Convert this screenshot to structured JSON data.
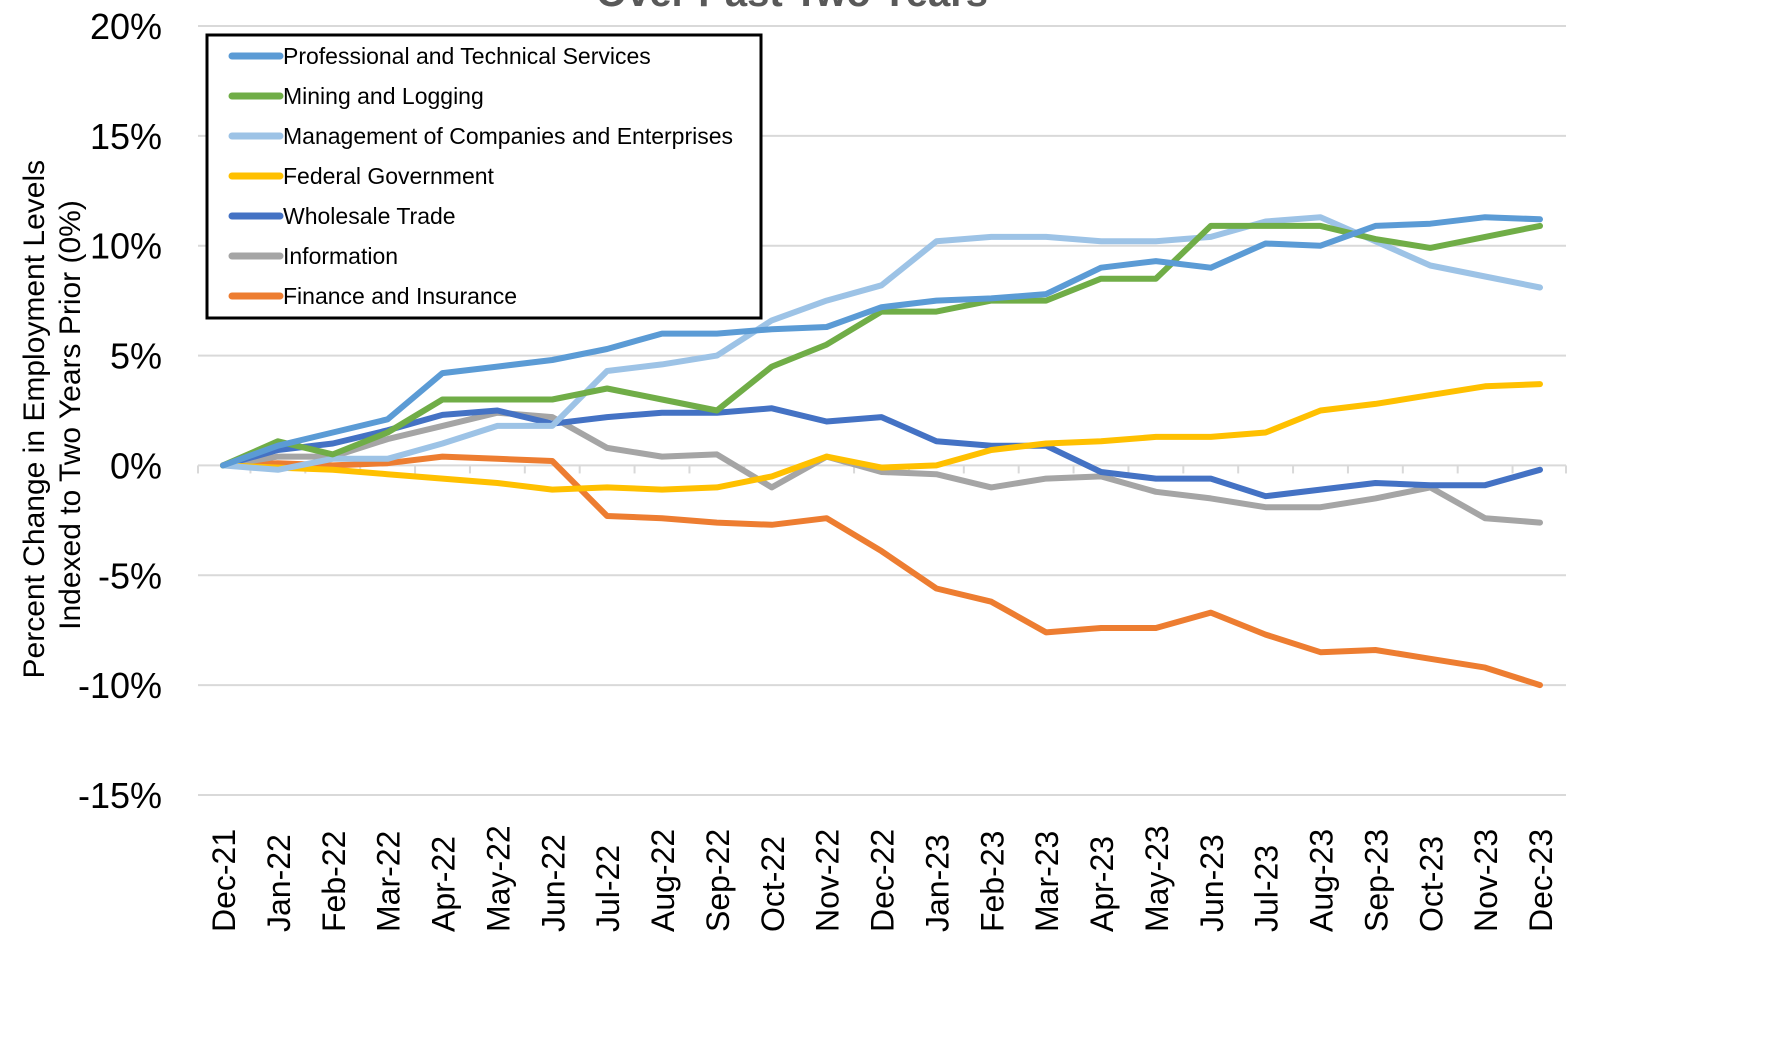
{
  "chart_data": {
    "type": "line",
    "title": "Over Past Two Years",
    "ylabel": "Percent Change in Employment Levels Indexed to Two Years Prior (0%)",
    "ylabel_lines": [
      "Percent Change in Employment Levels",
      "Indexed to Two Years Prior (0%)"
    ],
    "xlabel": "",
    "ylim": [
      -15,
      20
    ],
    "ytick_values": [
      20,
      15,
      10,
      5,
      0,
      -5,
      -10,
      -15
    ],
    "ytick_labels": [
      "20%",
      "15%",
      "10%",
      "5%",
      "0%",
      "-5%",
      "-10%",
      "-15%"
    ],
    "grid": true,
    "legend_position": "top-left",
    "categories": [
      "Dec-21",
      "Jan-22",
      "Feb-22",
      "Mar-22",
      "Apr-22",
      "May-22",
      "Jun-22",
      "Jul-22",
      "Aug-22",
      "Sep-22",
      "Oct-22",
      "Nov-22",
      "Dec-22",
      "Jan-23",
      "Feb-23",
      "Mar-23",
      "Apr-23",
      "May-23",
      "Jun-23",
      "Jul-23",
      "Aug-23",
      "Sep-23",
      "Oct-23",
      "Nov-23",
      "Dec-23"
    ],
    "series": [
      {
        "name": "Professional and Technical Services",
        "color": "#5B9BD5",
        "values": [
          0,
          0.9,
          1.5,
          2.1,
          4.2,
          4.5,
          4.8,
          5.3,
          6.0,
          6.0,
          6.2,
          6.3,
          7.2,
          7.5,
          7.6,
          7.8,
          9.0,
          9.3,
          9.0,
          10.1,
          10.0,
          10.9,
          11.0,
          11.3,
          11.2
        ]
      },
      {
        "name": "Mining and Logging",
        "color": "#70AD47",
        "values": [
          0,
          1.1,
          0.5,
          1.5,
          3.0,
          3.0,
          3.0,
          3.5,
          3.0,
          2.5,
          4.5,
          5.5,
          7.0,
          7.0,
          7.5,
          7.5,
          8.5,
          8.5,
          10.9,
          10.9,
          10.9,
          10.3,
          9.9,
          10.4,
          10.9
        ]
      },
      {
        "name": "Management of Companies and Enterprises",
        "color": "#9DC3E6",
        "values": [
          0,
          -0.2,
          0.3,
          0.3,
          1.0,
          1.8,
          1.8,
          4.3,
          4.6,
          5.0,
          6.6,
          7.5,
          8.2,
          10.2,
          10.4,
          10.4,
          10.2,
          10.2,
          10.4,
          11.1,
          11.3,
          10.2,
          9.1,
          8.6,
          8.1
        ]
      },
      {
        "name": "Federal Government",
        "color": "#FFC000",
        "values": [
          0,
          -0.1,
          -0.2,
          -0.4,
          -0.6,
          -0.8,
          -1.1,
          -1.0,
          -1.1,
          -1.0,
          -0.5,
          0.4,
          -0.1,
          0.0,
          0.7,
          1.0,
          1.1,
          1.3,
          1.3,
          1.5,
          2.5,
          2.8,
          3.2,
          3.6,
          3.7
        ]
      },
      {
        "name": "Wholesale Trade",
        "color": "#4472C4",
        "values": [
          0,
          0.7,
          1.0,
          1.6,
          2.3,
          2.5,
          1.9,
          2.2,
          2.4,
          2.4,
          2.6,
          2.0,
          2.2,
          1.1,
          0.9,
          0.9,
          -0.3,
          -0.6,
          -0.6,
          -1.4,
          -1.1,
          -0.8,
          -0.9,
          -0.9,
          -0.2
        ]
      },
      {
        "name": "Information",
        "color": "#A5A5A5",
        "values": [
          0,
          0.4,
          0.4,
          1.2,
          1.8,
          2.4,
          2.2,
          0.8,
          0.4,
          0.5,
          -1.0,
          0.4,
          -0.3,
          -0.4,
          -1.0,
          -0.6,
          -0.5,
          -1.2,
          -1.5,
          -1.9,
          -1.9,
          -1.5,
          -1.0,
          -2.4,
          -2.6
        ]
      },
      {
        "name": "Finance and Insurance",
        "color": "#ED7D31",
        "values": [
          0,
          0.1,
          0.0,
          0.1,
          0.4,
          0.3,
          0.2,
          -2.3,
          -2.4,
          -2.6,
          -2.7,
          -2.4,
          -3.9,
          -5.6,
          -6.2,
          -7.6,
          -7.4,
          -7.4,
          -6.7,
          -7.7,
          -8.5,
          -8.4,
          -8.8,
          -9.2,
          -10.0
        ]
      }
    ]
  }
}
